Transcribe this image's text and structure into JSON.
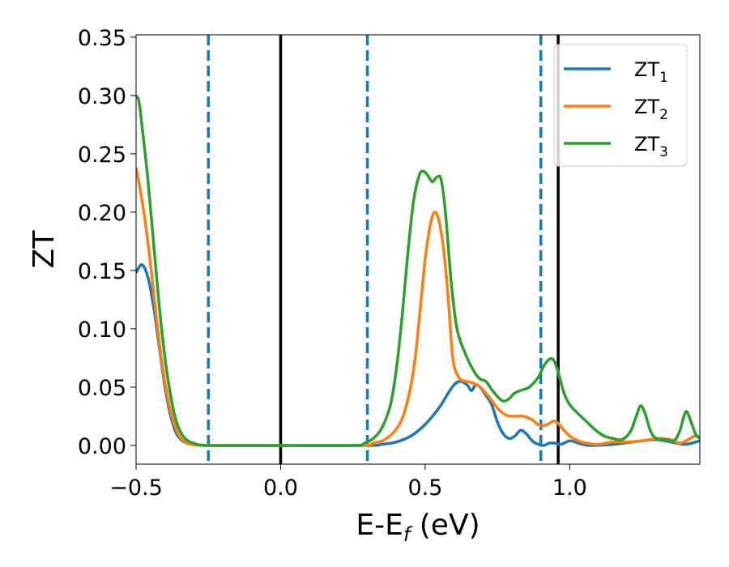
{
  "chart_data": {
    "type": "line",
    "xlabel": "E-E",
    "xlabel_sub": "f",
    "xlabel_unit": " (eV)",
    "ylabel": "ZT",
    "xlim": [
      -0.5,
      1.45
    ],
    "ylim": [
      -0.016,
      0.352
    ],
    "xticks": [
      -0.5,
      0.0,
      0.5,
      1.0
    ],
    "xtick_labels": [
      "−0.5",
      "0.0",
      "0.5",
      "1.0"
    ],
    "yticks": [
      0.0,
      0.05,
      0.1,
      0.15,
      0.2,
      0.25,
      0.3,
      0.35
    ],
    "ytick_labels": [
      "0.00",
      "0.05",
      "0.10",
      "0.15",
      "0.20",
      "0.25",
      "0.30",
      "0.35"
    ],
    "grid": false,
    "legend_position": "top-right",
    "series": [
      {
        "name": "ZT",
        "name_sub": "1",
        "color": "#1f77b4",
        "points": [
          [
            -0.5,
            0.148
          ],
          [
            -0.48,
            0.155
          ],
          [
            -0.46,
            0.145
          ],
          [
            -0.44,
            0.12
          ],
          [
            -0.42,
            0.085
          ],
          [
            -0.4,
            0.05
          ],
          [
            -0.38,
            0.025
          ],
          [
            -0.36,
            0.01
          ],
          [
            -0.34,
            0.004
          ],
          [
            -0.32,
            0.002
          ],
          [
            -0.3,
            0.001
          ],
          [
            -0.25,
            0.0
          ],
          [
            0.0,
            0.0
          ],
          [
            0.3,
            0.0
          ],
          [
            0.35,
            0.001
          ],
          [
            0.4,
            0.003
          ],
          [
            0.45,
            0.008
          ],
          [
            0.5,
            0.018
          ],
          [
            0.55,
            0.033
          ],
          [
            0.58,
            0.045
          ],
          [
            0.6,
            0.052
          ],
          [
            0.62,
            0.055
          ],
          [
            0.645,
            0.052
          ],
          [
            0.66,
            0.047
          ],
          [
            0.675,
            0.052
          ],
          [
            0.69,
            0.05
          ],
          [
            0.71,
            0.043
          ],
          [
            0.73,
            0.035
          ],
          [
            0.75,
            0.02
          ],
          [
            0.77,
            0.01
          ],
          [
            0.79,
            0.006
          ],
          [
            0.81,
            0.008
          ],
          [
            0.83,
            0.013
          ],
          [
            0.85,
            0.01
          ],
          [
            0.87,
            0.004
          ],
          [
            0.89,
            0.001
          ],
          [
            0.91,
            0.0
          ],
          [
            0.93,
            0.002
          ],
          [
            0.95,
            0.002
          ],
          [
            0.97,
            0.001
          ],
          [
            1.0,
            0.004
          ],
          [
            1.03,
            0.002
          ],
          [
            1.07,
            0.0
          ],
          [
            1.15,
            0.001
          ],
          [
            1.25,
            0.004
          ],
          [
            1.3,
            0.005
          ],
          [
            1.35,
            0.003
          ],
          [
            1.4,
            0.001
          ],
          [
            1.45,
            0.004
          ]
        ]
      },
      {
        "name": "ZT",
        "name_sub": "2",
        "color": "#ff7f0e",
        "points": [
          [
            -0.5,
            0.238
          ],
          [
            -0.49,
            0.225
          ],
          [
            -0.47,
            0.195
          ],
          [
            -0.45,
            0.155
          ],
          [
            -0.43,
            0.11
          ],
          [
            -0.41,
            0.07
          ],
          [
            -0.39,
            0.04
          ],
          [
            -0.37,
            0.02
          ],
          [
            -0.35,
            0.008
          ],
          [
            -0.33,
            0.003
          ],
          [
            -0.31,
            0.001
          ],
          [
            -0.25,
            0.0
          ],
          [
            0.0,
            0.0
          ],
          [
            0.28,
            0.0
          ],
          [
            0.32,
            0.002
          ],
          [
            0.36,
            0.005
          ],
          [
            0.4,
            0.014
          ],
          [
            0.43,
            0.03
          ],
          [
            0.46,
            0.065
          ],
          [
            0.48,
            0.11
          ],
          [
            0.5,
            0.16
          ],
          [
            0.52,
            0.192
          ],
          [
            0.535,
            0.2
          ],
          [
            0.55,
            0.19
          ],
          [
            0.565,
            0.165
          ],
          [
            0.58,
            0.125
          ],
          [
            0.59,
            0.09
          ],
          [
            0.6,
            0.068
          ],
          [
            0.62,
            0.057
          ],
          [
            0.64,
            0.055
          ],
          [
            0.66,
            0.054
          ],
          [
            0.69,
            0.05
          ],
          [
            0.72,
            0.042
          ],
          [
            0.75,
            0.032
          ],
          [
            0.78,
            0.026
          ],
          [
            0.81,
            0.025
          ],
          [
            0.84,
            0.025
          ],
          [
            0.87,
            0.022
          ],
          [
            0.89,
            0.018
          ],
          [
            0.91,
            0.017
          ],
          [
            0.93,
            0.019
          ],
          [
            0.945,
            0.021
          ],
          [
            0.96,
            0.019
          ],
          [
            0.98,
            0.013
          ],
          [
            1.0,
            0.008
          ],
          [
            1.03,
            0.004
          ],
          [
            1.06,
            0.002
          ],
          [
            1.1,
            0.001
          ],
          [
            1.15,
            0.003
          ],
          [
            1.2,
            0.003
          ],
          [
            1.25,
            0.004
          ],
          [
            1.3,
            0.006
          ],
          [
            1.35,
            0.005
          ],
          [
            1.38,
            0.002
          ],
          [
            1.41,
            0.005
          ],
          [
            1.43,
            0.008
          ],
          [
            1.45,
            0.007
          ]
        ]
      },
      {
        "name": "ZT",
        "name_sub": "3",
        "color": "#2ca02c",
        "points": [
          [
            -0.5,
            0.3
          ],
          [
            -0.49,
            0.295
          ],
          [
            -0.48,
            0.275
          ],
          [
            -0.46,
            0.23
          ],
          [
            -0.44,
            0.175
          ],
          [
            -0.42,
            0.12
          ],
          [
            -0.4,
            0.075
          ],
          [
            -0.38,
            0.042
          ],
          [
            -0.36,
            0.02
          ],
          [
            -0.34,
            0.009
          ],
          [
            -0.32,
            0.004
          ],
          [
            -0.3,
            0.002
          ],
          [
            -0.25,
            0.0
          ],
          [
            0.0,
            0.0
          ],
          [
            0.25,
            0.0
          ],
          [
            0.29,
            0.002
          ],
          [
            0.32,
            0.006
          ],
          [
            0.35,
            0.015
          ],
          [
            0.38,
            0.035
          ],
          [
            0.4,
            0.065
          ],
          [
            0.42,
            0.11
          ],
          [
            0.44,
            0.165
          ],
          [
            0.46,
            0.21
          ],
          [
            0.48,
            0.232
          ],
          [
            0.495,
            0.235
          ],
          [
            0.51,
            0.231
          ],
          [
            0.525,
            0.226
          ],
          [
            0.54,
            0.23
          ],
          [
            0.555,
            0.228
          ],
          [
            0.57,
            0.2
          ],
          [
            0.59,
            0.14
          ],
          [
            0.61,
            0.1
          ],
          [
            0.64,
            0.078
          ],
          [
            0.67,
            0.063
          ],
          [
            0.69,
            0.057
          ],
          [
            0.71,
            0.055
          ],
          [
            0.73,
            0.048
          ],
          [
            0.75,
            0.042
          ],
          [
            0.77,
            0.038
          ],
          [
            0.79,
            0.04
          ],
          [
            0.81,
            0.045
          ],
          [
            0.84,
            0.048
          ],
          [
            0.86,
            0.05
          ],
          [
            0.89,
            0.058
          ],
          [
            0.91,
            0.068
          ],
          [
            0.93,
            0.074
          ],
          [
            0.945,
            0.073
          ],
          [
            0.96,
            0.063
          ],
          [
            0.98,
            0.045
          ],
          [
            1.0,
            0.035
          ],
          [
            1.03,
            0.027
          ],
          [
            1.06,
            0.02
          ],
          [
            1.09,
            0.013
          ],
          [
            1.12,
            0.008
          ],
          [
            1.15,
            0.006
          ],
          [
            1.18,
            0.005
          ],
          [
            1.21,
            0.012
          ],
          [
            1.23,
            0.025
          ],
          [
            1.245,
            0.034
          ],
          [
            1.26,
            0.028
          ],
          [
            1.28,
            0.012
          ],
          [
            1.3,
            0.006
          ],
          [
            1.33,
            0.005
          ],
          [
            1.36,
            0.004
          ],
          [
            1.38,
            0.012
          ],
          [
            1.395,
            0.025
          ],
          [
            1.405,
            0.029
          ],
          [
            1.42,
            0.02
          ],
          [
            1.435,
            0.01
          ],
          [
            1.45,
            0.006
          ]
        ]
      }
    ],
    "vlines": [
      {
        "x": -0.25,
        "style": "dashed",
        "color": "#1f77b4"
      },
      {
        "x": 0.0,
        "style": "solid",
        "color": "#000000"
      },
      {
        "x": 0.3,
        "style": "dashed",
        "color": "#1f77b4"
      },
      {
        "x": 0.9,
        "style": "dashed",
        "color": "#1f77b4"
      },
      {
        "x": 0.96,
        "style": "solid",
        "color": "#000000"
      }
    ]
  }
}
